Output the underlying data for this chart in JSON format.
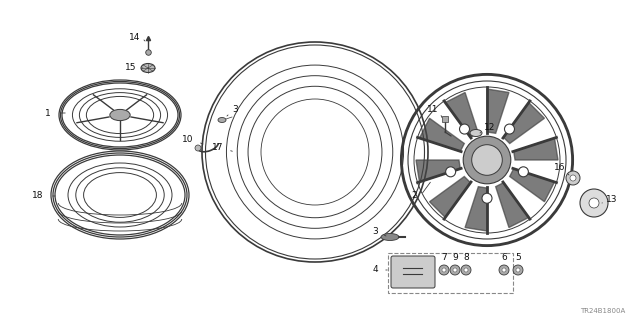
{
  "bg_color": "#ffffff",
  "line_color": "#3a3a3a",
  "label_color": "#111111",
  "watermark": "TR24B1800A",
  "fig_width": 6.4,
  "fig_height": 3.2,
  "dpi": 100
}
